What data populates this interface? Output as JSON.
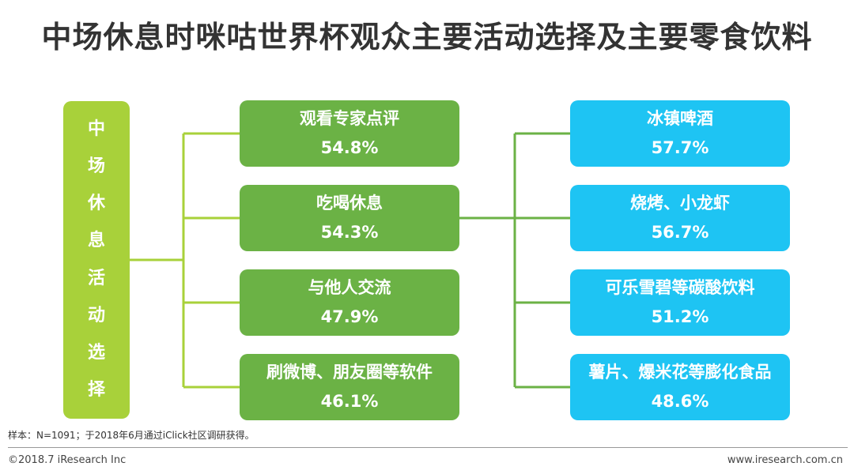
{
  "title": "中场休息时咪咕世界杯观众主要活动选择及主要零食饮料",
  "left_label_chars": [
    "中",
    "场",
    "休",
    "息",
    "活",
    "动",
    "选",
    "择"
  ],
  "activities": [
    {
      "label": "观看专家点评",
      "value": "54.8%"
    },
    {
      "label": "吃喝休息",
      "value": "54.3%"
    },
    {
      "label": "与他人交流",
      "value": "47.9%"
    },
    {
      "label": "刷微博、朋友圈等软件",
      "value": "46.1%"
    }
  ],
  "snacks": [
    {
      "label": "冰镇啤酒",
      "value": "57.7%"
    },
    {
      "label": "烧烤、小龙虾",
      "value": "56.7%"
    },
    {
      "label": "可乐雪碧等碳酸饮料",
      "value": "51.2%"
    },
    {
      "label": "薯片、爆米花等膨化食品",
      "value": "48.6%"
    }
  ],
  "footer": {
    "sample_note": "样本：N=1091；于2018年6月通过iClick社区调研获得。",
    "copyright": "©2018.7 iResearch Inc",
    "website": "www.iresearch.com.cn"
  },
  "colors": {
    "left_box": "#a8d13a",
    "activity_box": "#6bb245",
    "snack_box": "#1ec4f3",
    "left_connector": "#a8d13a",
    "right_connector": "#6bb245"
  }
}
